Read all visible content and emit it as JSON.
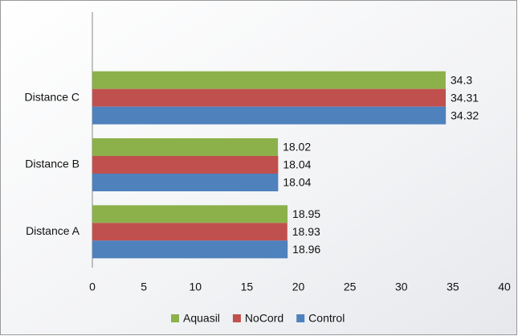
{
  "chart_data": {
    "type": "barh",
    "categories": [
      "Distance C",
      "Distance B",
      "Distance A"
    ],
    "series": [
      {
        "name": "Aquasil",
        "color": "#8cb14a",
        "values": [
          34.3,
          18.02,
          18.95
        ]
      },
      {
        "name": "NoCord",
        "color": "#c0504d",
        "values": [
          34.31,
          18.04,
          18.93
        ]
      },
      {
        "name": "Control",
        "color": "#4f81bd",
        "values": [
          34.32,
          18.04,
          18.96
        ]
      }
    ],
    "xlim": [
      0,
      40
    ],
    "xticks": [
      0,
      5,
      10,
      15,
      20,
      25,
      30,
      35,
      40
    ],
    "legend": "bottom"
  }
}
